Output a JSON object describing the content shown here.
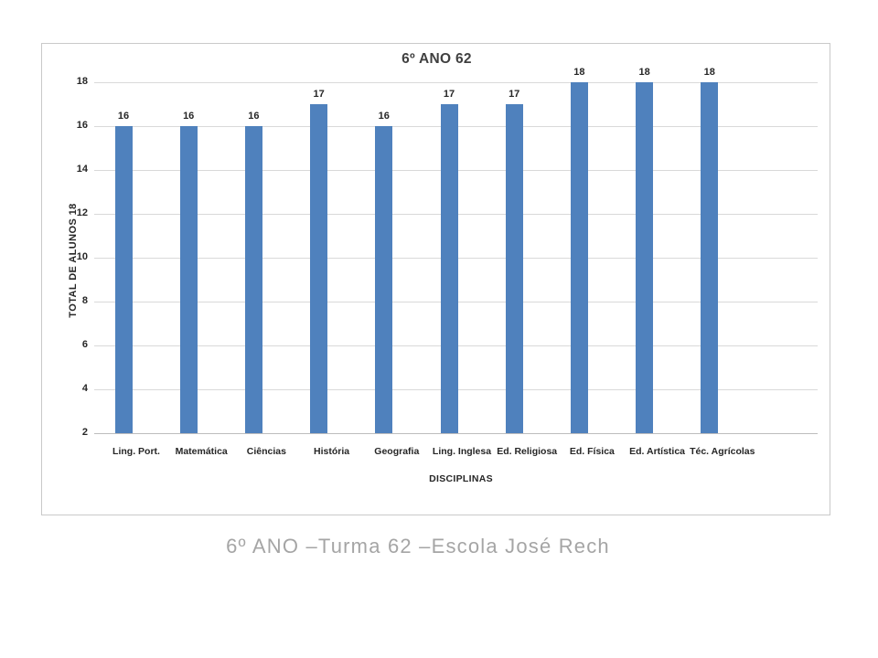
{
  "caption": "6º ANO –Turma 62 –Escola José Rech",
  "chart_data": {
    "type": "bar",
    "title": "6º ANO 62",
    "xlabel": "DISCIPLINAS",
    "ylabel": "TOTAL DE ALUNOS 18",
    "categories": [
      "Ling. Port.",
      "Matemática",
      "Ciências",
      "História",
      "Geografia",
      "Ling. Inglesa",
      "Ed. Religiosa",
      "Ed. Física",
      "Ed. Artística",
      "Téc. Agrícolas"
    ],
    "values": [
      16,
      16,
      16,
      17,
      16,
      17,
      17,
      18,
      18,
      18
    ],
    "data_labels_shown": true,
    "ylim": [
      2,
      18
    ],
    "yticks": [
      2,
      4,
      6,
      8,
      10,
      12,
      14,
      16,
      18
    ],
    "grid": true,
    "legend": "none",
    "colors": {
      "bar": "#4f81bd",
      "gridline": "#d9d9d9",
      "axis_line": "#bdbdbd",
      "text": "#262626",
      "title_text": "#404040",
      "caption_text": "#a5a5a5",
      "frame_border": "#c9c9c9"
    }
  }
}
